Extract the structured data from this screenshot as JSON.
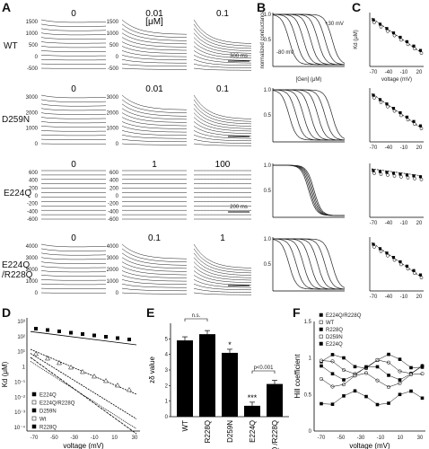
{
  "figure": {
    "panel_labels": [
      "A",
      "B",
      "C",
      "D",
      "E",
      "F"
    ],
    "rows": [
      {
        "name": "WT",
        "conc": [
          "0",
          "0.01\n[μM]",
          "0.1"
        ],
        "yticks": [
          "1500",
          "1000",
          "500",
          "0",
          "-500"
        ],
        "scalebar": "300 ms"
      },
      {
        "name": "D259N",
        "conc": [
          "0",
          "0.01",
          "0.1"
        ],
        "yticks": [
          "3000",
          "2000",
          "1000",
          "0"
        ],
        "scalebar": ""
      },
      {
        "name": "E224Q",
        "conc": [
          "0",
          "1",
          "100"
        ],
        "yticks": [
          "600",
          "400",
          "200",
          "0",
          "-200",
          "-400",
          "-600"
        ],
        "scalebar": "200 ms"
      },
      {
        "name": "E224Q\n/R228Q",
        "conc": [
          "0",
          "0.1",
          "1"
        ],
        "yticks": [
          "4000",
          "3000",
          "2000",
          "1000",
          "0"
        ],
        "scalebar": ""
      }
    ],
    "B": {
      "ylabel": "normalized conductance",
      "xlabel": "[Gen] (μM)",
      "ann1": "-80 mV",
      "ann2": "+30 mV",
      "mid": "0.5",
      "top": "1.0"
    },
    "C": {
      "ylabel": "Kd (μM)",
      "xlabel": "voltage (mV)",
      "xticks": [
        "-70",
        "-40",
        "-10",
        "20"
      ]
    },
    "D": {
      "ylabel": "Kd (μM)",
      "xlabel": "voltage (mV)",
      "xticks": [
        "-70",
        "-50",
        "-30",
        "-10",
        "10",
        "30"
      ],
      "yticks": [
        "10³",
        "10²",
        "10¹",
        "1",
        "10⁻¹",
        "10⁻²",
        "10⁻³",
        "10⁻⁴"
      ],
      "legend": [
        "E224Q",
        "E224Q/R228Q",
        "D259N",
        "Wt",
        "R228Q"
      ]
    },
    "E": {
      "ylabel": "zδ value",
      "yticks": [
        "0",
        "1",
        "2",
        "3",
        "4",
        "5"
      ],
      "categories": [
        "WT",
        "R228Q",
        "D259N",
        "E224Q",
        "E224Q /R228Q"
      ],
      "values": [
        4.9,
        5.3,
        4.1,
        0.7,
        2.1
      ],
      "ns": "n.s.",
      "sig1": "*",
      "sig3": "***",
      "pval": "p<0.001"
    },
    "F": {
      "ylabel": "Hill coefficient",
      "xlabel": "voltage (mV)",
      "xticks": [
        "-70",
        "-50",
        "-30",
        "-10",
        "10",
        "30"
      ],
      "yticks": [
        "0",
        "0.5",
        "1",
        "1.5"
      ],
      "legend": [
        "E224Q/R228Q",
        "WT",
        "R228Q",
        "D259N",
        "E224Q"
      ]
    }
  }
}
